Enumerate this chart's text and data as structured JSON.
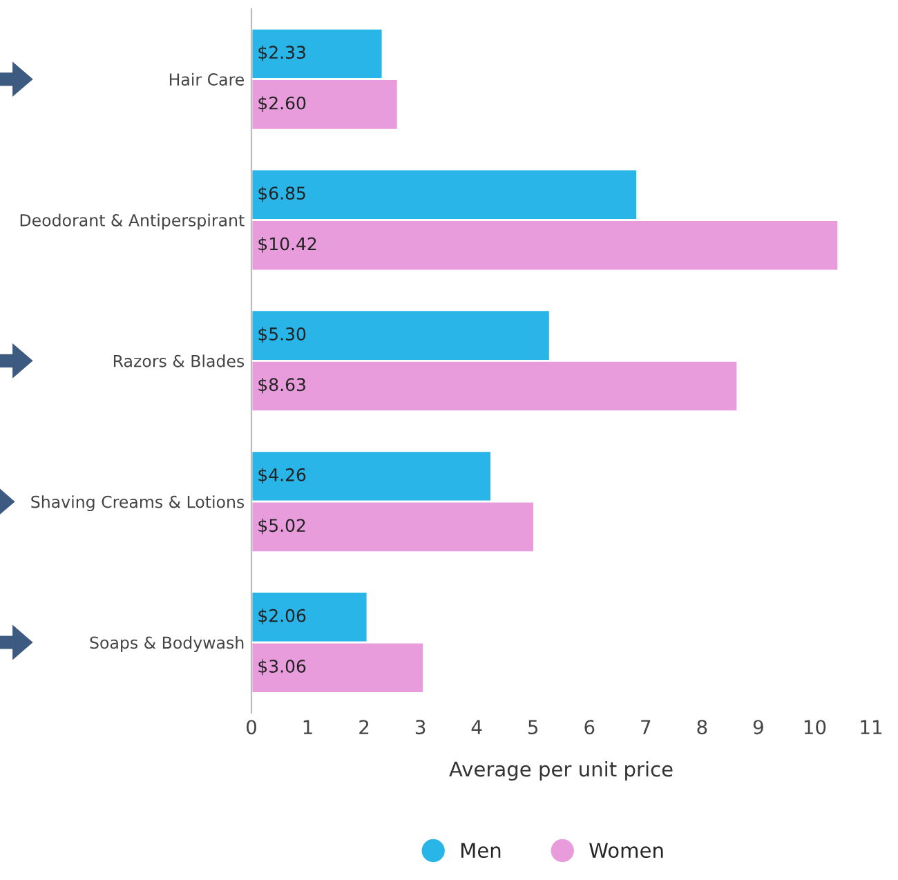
{
  "chart_data": {
    "type": "bar",
    "orientation": "horizontal",
    "xlabel": "Average per unit price",
    "categories": [
      "Hair Care",
      "Deodorant & Antiperspirant",
      "Razors & Blades",
      "Shaving Creams & Lotions",
      "Soaps & Bodywash"
    ],
    "series": [
      {
        "name": "Men",
        "color": "#29b5e8",
        "values": [
          2.33,
          6.85,
          5.3,
          4.26,
          2.06
        ],
        "value_labels": [
          "$2.33",
          "$6.85",
          "$5.30",
          "$4.26",
          "$2.06"
        ]
      },
      {
        "name": "Women",
        "color": "#e89cdc",
        "values": [
          2.6,
          10.42,
          8.63,
          5.02,
          3.06
        ],
        "value_labels": [
          "$2.60",
          "$10.42",
          "$8.63",
          "$5.02",
          "$3.06"
        ]
      }
    ],
    "xlim": [
      0,
      11
    ],
    "xticks": [
      0,
      1,
      2,
      3,
      4,
      5,
      6,
      7,
      8,
      9,
      10,
      11
    ],
    "grid": false,
    "legend": "bottom"
  }
}
